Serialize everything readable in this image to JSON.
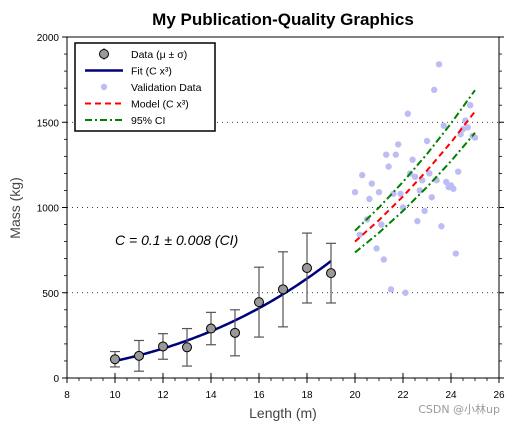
{
  "chart_data": {
    "type": "scatter",
    "title": "My Publication-Quality Graphics",
    "xlabel": "Length (m)",
    "ylabel": "Mass (kg)",
    "xlim": [
      8,
      26
    ],
    "ylim": [
      0,
      2000
    ],
    "xticks": [
      8,
      10,
      12,
      14,
      16,
      18,
      20,
      22,
      24,
      26
    ],
    "yticks": [
      0,
      500,
      1000,
      1500,
      2000
    ],
    "grid": "dotted horizontal",
    "legend_position": "top-left",
    "annotation": "C = 0.1 ± 0.008 (CI)",
    "series": [
      {
        "name": "Data (μ ± σ)",
        "kind": "errorbar",
        "color": "#999999",
        "x": [
          10,
          11,
          12,
          13,
          14,
          15,
          16,
          17,
          18,
          19
        ],
        "y": [
          110,
          130,
          185,
          180,
          290,
          265,
          445,
          520,
          645,
          615
        ],
        "yerr": [
          45,
          90,
          75,
          110,
          95,
          135,
          205,
          220,
          205,
          175
        ]
      },
      {
        "name": "Fit (C x³)",
        "kind": "line",
        "color": "#00007f",
        "x": [
          10,
          11,
          12,
          13,
          14,
          15,
          16,
          17,
          18,
          19
        ],
        "y": [
          100,
          133,
          173,
          220,
          274,
          338,
          410,
          491,
          583,
          686
        ]
      },
      {
        "name": "Validation Data",
        "kind": "scatter",
        "color": "#bdbdf5",
        "x": [
          20.0,
          20.2,
          20.3,
          20.5,
          20.6,
          20.7,
          20.9,
          21.0,
          21.1,
          21.2,
          21.3,
          21.4,
          21.5,
          21.6,
          21.7,
          21.8,
          21.9,
          22.0,
          22.1,
          22.2,
          22.3,
          22.4,
          22.5,
          22.6,
          22.7,
          22.8,
          22.9,
          23.0,
          23.1,
          23.2,
          23.3,
          23.4,
          23.5,
          23.6,
          23.7,
          23.8,
          23.9,
          24.0,
          24.1,
          24.2,
          24.3,
          24.4,
          24.5,
          24.6,
          24.7,
          24.8,
          24.9,
          25.0
        ],
        "y": [
          1090,
          840,
          1190,
          930,
          1050,
          1140,
          760,
          1090,
          900,
          695,
          1310,
          1240,
          520,
          1080,
          1310,
          1370,
          1080,
          1000,
          500,
          1550,
          1200,
          1280,
          1180,
          920,
          1100,
          1160,
          980,
          1390,
          1200,
          1060,
          1690,
          1160,
          1840,
          890,
          1480,
          1150,
          1120,
          1130,
          1110,
          730,
          1210,
          1430,
          1460,
          1510,
          1470,
          1600,
          1420,
          1410
        ]
      },
      {
        "name": "Model (C x³)",
        "kind": "line",
        "color": "#ff0000",
        "x": [
          20,
          21,
          22,
          23,
          24,
          25
        ],
        "y": [
          800,
          926,
          1065,
          1217,
          1382,
          1563
        ]
      },
      {
        "name": "95% CI upper",
        "kind": "line",
        "color": "#008000",
        "x": [
          20,
          21,
          22,
          23,
          24,
          25
        ],
        "y": [
          864,
          1000,
          1150,
          1314,
          1493,
          1688
        ]
      },
      {
        "name": "95% CI lower",
        "kind": "line",
        "color": "#008000",
        "x": [
          20,
          21,
          22,
          23,
          24,
          25
        ],
        "y": [
          736,
          852,
          980,
          1120,
          1272,
          1438
        ]
      }
    ],
    "legend": [
      {
        "label": "Data (μ ± σ)",
        "kind": "marker-error",
        "color": "#999999"
      },
      {
        "label": "Fit (C x³)",
        "kind": "solid",
        "color": "#00007f"
      },
      {
        "label": "Validation Data",
        "kind": "dot",
        "color": "#bdbdf5"
      },
      {
        "label": "Model (C x³)",
        "kind": "dashed",
        "color": "#ff0000"
      },
      {
        "label": "95% CI",
        "kind": "dashdot",
        "color": "#008000"
      }
    ]
  },
  "watermark": "CSDN @小林up"
}
